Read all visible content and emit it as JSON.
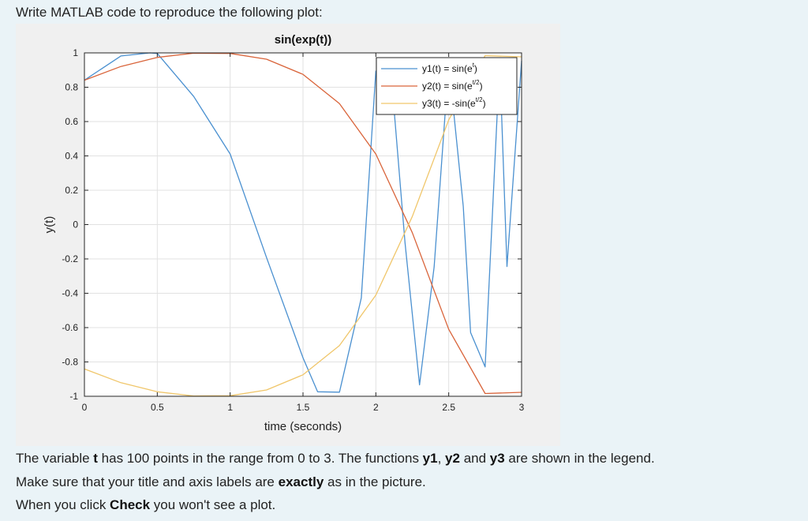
{
  "prompt_text": "Write MATLAB code to reproduce the following plot:",
  "instructions": {
    "line1": {
      "pre": "The variable ",
      "t": "t",
      "mid1": " has 100 points in the range from 0 to 3. The functions ",
      "y1": "y1",
      "comma": ", ",
      "y2": "y2",
      "and": " and ",
      "y3": "y3",
      "post": " are shown in the legend."
    },
    "line2": {
      "pre": "Make sure that your title and axis labels are ",
      "bold": "exactly",
      "post": " as in the picture."
    },
    "line3": {
      "pre": "When you click ",
      "bold": "Check",
      "post": " you won't see a plot."
    }
  },
  "colors": {
    "figure_bg": "#f0f0f0",
    "axes_bg": "#ffffff",
    "grid": "#e2e2e2",
    "y1": "#4a90d0",
    "y2": "#d9643a",
    "y3": "#f0c66a"
  },
  "chart_data": {
    "type": "line",
    "title": "sin(exp(t))",
    "xlabel": "time (seconds)",
    "ylabel": "y(t)",
    "xlim": [
      0,
      3
    ],
    "ylim": [
      -1,
      1
    ],
    "grid": true,
    "legend_position": "top-right",
    "xticks": [
      0,
      0.5,
      1,
      1.5,
      2,
      2.5,
      3
    ],
    "xtick_labels": [
      "0",
      "0.5",
      "1",
      "1.5",
      "2",
      "2.5",
      "3"
    ],
    "yticks": [
      1,
      0.8,
      0.6,
      0.4,
      0.2,
      0,
      -0.2,
      -0.4,
      -0.6,
      -0.8,
      -1
    ],
    "ytick_labels": [
      "1",
      "0.8",
      "0.6",
      "0.4",
      "0.2",
      "0",
      "-0.2",
      "-0.4",
      "-0.6",
      "-0.8",
      "-1"
    ],
    "series": [
      {
        "name": "y1(t) = sin(e^t)",
        "legend_parts": {
          "pre": "y1(t) = sin(e",
          "sup": "t",
          "post": ")"
        },
        "x": [
          0,
          0.25,
          0.45,
          0.5,
          0.75,
          1,
          1.25,
          1.5,
          1.6,
          1.75,
          1.9,
          2,
          2.1,
          2.2,
          2.3,
          2.4,
          2.5,
          2.6,
          2.65,
          2.75,
          2.85,
          2.9,
          3
        ],
        "y": [
          0.841,
          0.982,
          1.0,
          0.997,
          0.746,
          0.411,
          -0.192,
          -0.776,
          -0.974,
          -0.976,
          -0.427,
          0.894,
          0.929,
          -0.106,
          -0.934,
          -0.246,
          0.94,
          0.106,
          -0.629,
          -0.829,
          0.952,
          -0.244,
          0.953
        ]
      },
      {
        "name": "y2(t) = sin(e^{t/2})",
        "legend_parts": {
          "pre": "y2(t) = sin(e",
          "sup": "t/2",
          "post": ")"
        },
        "x": [
          0,
          0.25,
          0.5,
          0.75,
          1,
          1.25,
          1.5,
          1.75,
          2,
          2.25,
          2.5,
          2.75,
          3
        ],
        "y": [
          0.841,
          0.921,
          0.974,
          0.998,
          0.997,
          0.963,
          0.875,
          0.705,
          0.411,
          -0.047,
          -0.61,
          -0.984,
          -0.977
        ]
      },
      {
        "name": "y3(t) = -sin(e^{t/2})",
        "legend_parts": {
          "pre": "y3(t) = -sin(e",
          "sup": "t/2",
          "post": ")"
        },
        "x": [
          0,
          0.25,
          0.5,
          0.75,
          1,
          1.25,
          1.5,
          1.75,
          2,
          2.25,
          2.5,
          2.75,
          3
        ],
        "y": [
          -0.841,
          -0.921,
          -0.974,
          -0.998,
          -0.997,
          -0.963,
          -0.875,
          -0.705,
          -0.411,
          0.047,
          0.61,
          0.984,
          0.977
        ]
      }
    ]
  }
}
